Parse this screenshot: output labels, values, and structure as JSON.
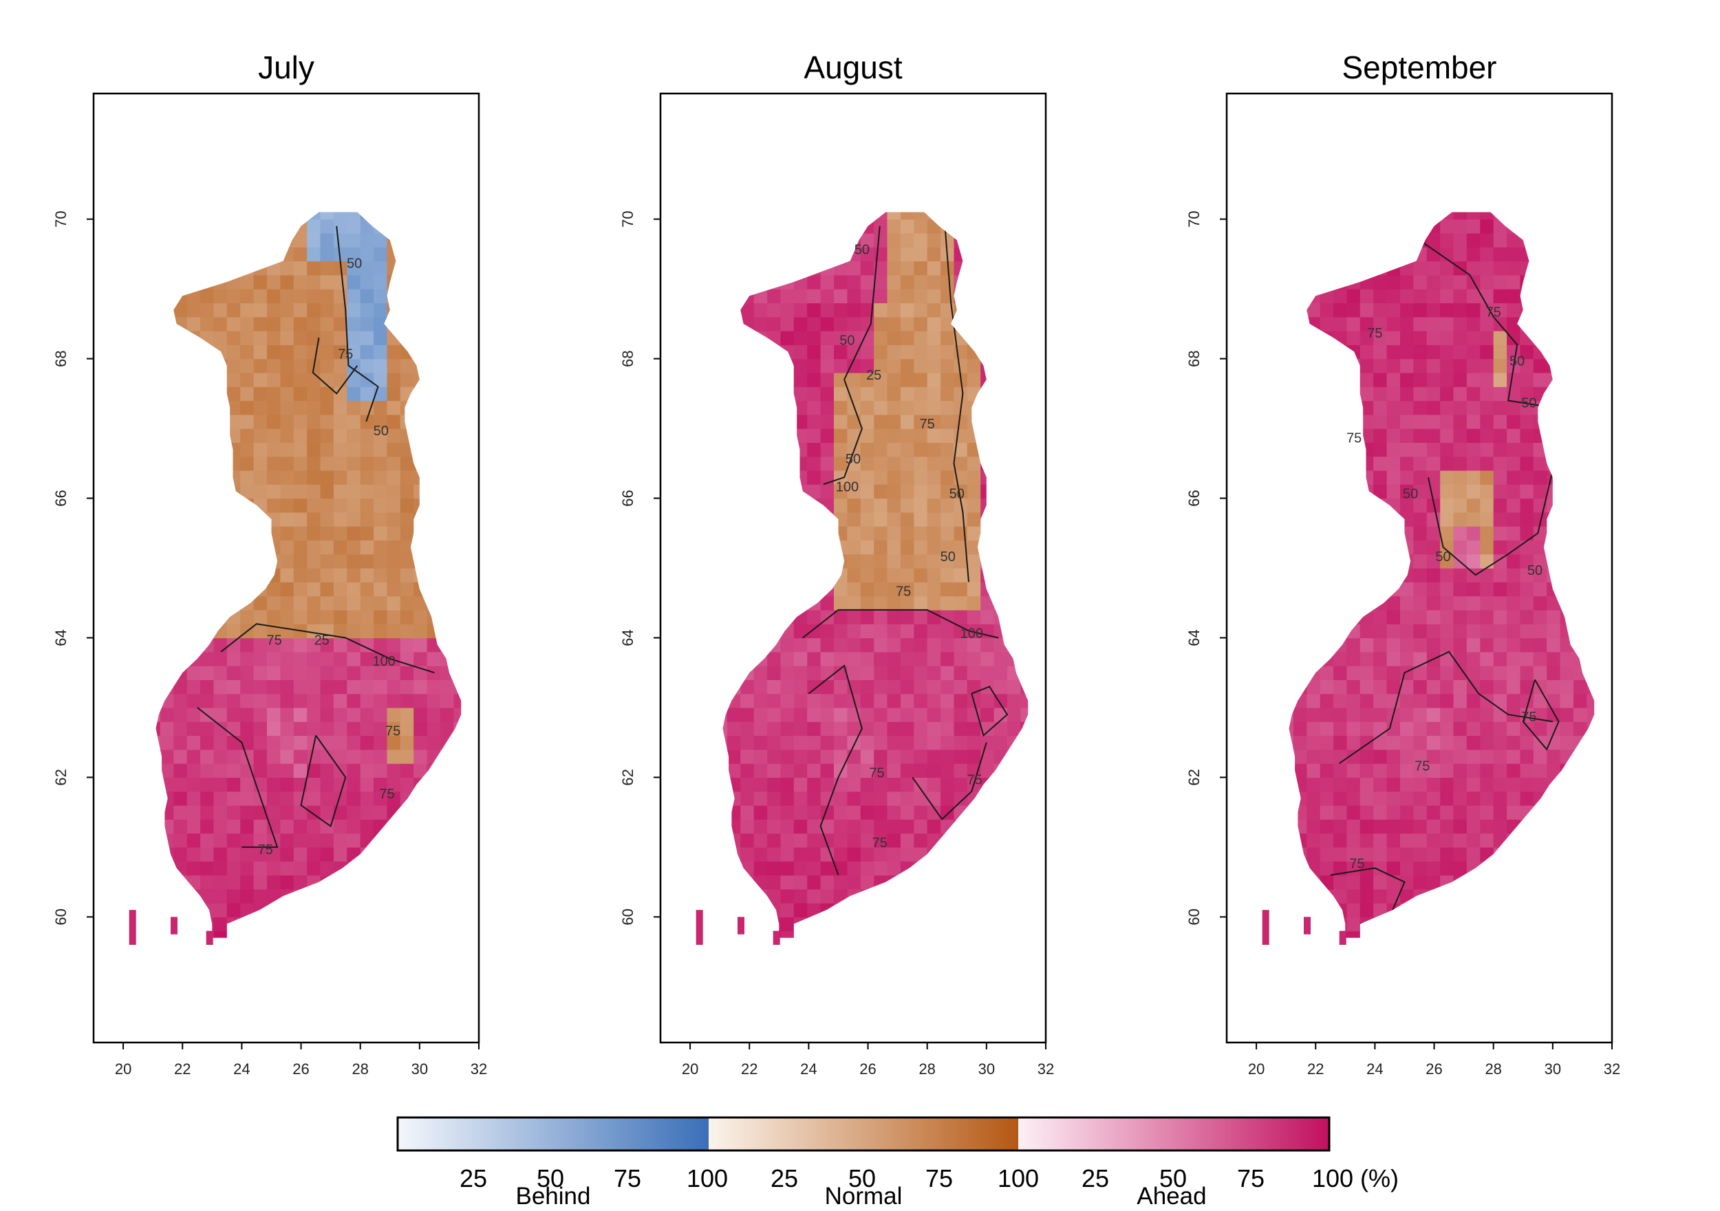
{
  "chart_data": [
    {
      "type": "heatmap",
      "title": "July",
      "x_ticks": [
        "20",
        "22",
        "24",
        "26",
        "28",
        "30",
        "32"
      ],
      "y_ticks": [
        "60",
        "62",
        "64",
        "66",
        "68",
        "70"
      ],
      "xlim": [
        19,
        32
      ],
      "ylim": [
        58.2,
        71.8
      ],
      "regions": [
        {
          "category": "Normal",
          "value": 75,
          "lat_range": [
            64,
            69.3
          ]
        },
        {
          "category": "Behind",
          "value": 70,
          "lat_range": [
            67.5,
            70
          ]
        },
        {
          "category": "Ahead",
          "value": 75,
          "lat_range": [
            59.7,
            64
          ]
        }
      ],
      "contour_labels": [
        "50",
        "75",
        "50",
        "75",
        "25",
        "100",
        "75",
        "75",
        "75"
      ]
    },
    {
      "type": "heatmap",
      "title": "August",
      "x_ticks": [
        "20",
        "22",
        "24",
        "26",
        "28",
        "30",
        "32"
      ],
      "y_ticks": [
        "60",
        "62",
        "64",
        "66",
        "68",
        "70"
      ],
      "xlim": [
        19,
        32
      ],
      "ylim": [
        58.2,
        71.8
      ],
      "regions": [
        {
          "category": "Ahead",
          "value": 75,
          "lat_range": [
            59.7,
            70
          ]
        },
        {
          "category": "Normal",
          "value": 65,
          "lat_range": [
            64.3,
            70
          ]
        }
      ],
      "contour_labels": [
        "50",
        "50",
        "25",
        "75",
        "50",
        "100",
        "50",
        "50",
        "75",
        "100",
        "75",
        "75",
        "75"
      ]
    },
    {
      "type": "heatmap",
      "title": "September",
      "x_ticks": [
        "20",
        "22",
        "24",
        "26",
        "28",
        "30",
        "32"
      ],
      "y_ticks": [
        "60",
        "62",
        "64",
        "66",
        "68",
        "70"
      ],
      "xlim": [
        19,
        32
      ],
      "ylim": [
        58.2,
        71.8
      ],
      "regions": [
        {
          "category": "Ahead",
          "value": 75,
          "lat_range": [
            59.7,
            70
          ]
        }
      ],
      "contour_labels": [
        "75",
        "75",
        "50",
        "50",
        "75",
        "50",
        "50",
        "50",
        "75",
        "75",
        "75"
      ]
    }
  ],
  "legend": {
    "categories": [
      "Behind",
      "Normal",
      "Ahead"
    ],
    "tick_labels": [
      "25",
      "50",
      "75",
      "100",
      "25",
      "50",
      "75",
      "100",
      "25",
      "50",
      "75",
      "100 (%)"
    ],
    "colors": {
      "behind_low": "#f4f7fb",
      "behind_high": "#3a6fb8",
      "normal_low": "#fbf4ec",
      "normal_high": "#b45814",
      "ahead_low": "#fdf0f6",
      "ahead_high": "#c2105f"
    }
  }
}
